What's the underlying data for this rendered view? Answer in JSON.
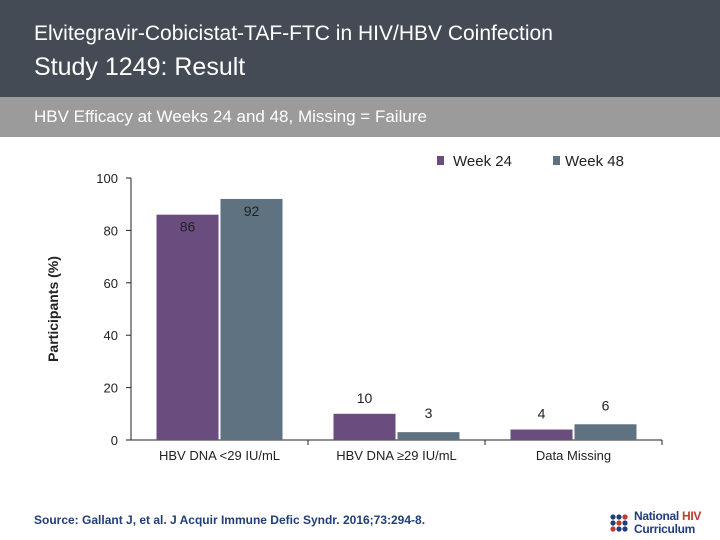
{
  "header": {
    "line1": "Elvitegravir-Cobicistat-TAF-FTC in HIV/HBV Coinfection",
    "line2": "Study 1249: Result",
    "bg_color": "#444b55"
  },
  "subheader": {
    "text": "HBV Efficacy at Weeks 24 and 48, Missing = Failure",
    "bg_color": "#9b9b9b"
  },
  "chart_data": {
    "type": "bar",
    "ylabel": "Participants (%)",
    "ylim": [
      0,
      100
    ],
    "yticks": [
      0,
      20,
      40,
      60,
      80,
      100
    ],
    "categories": [
      "HBV DNA <29 IU/mL",
      "HBV DNA ≥29 IU/mL",
      "Data Missing"
    ],
    "series": [
      {
        "name": "Week 24",
        "values": [
          86,
          10,
          4
        ],
        "color": "#6b4c7e"
      },
      {
        "name": "Week 48",
        "values": [
          92,
          3,
          6
        ],
        "color": "#5f7282"
      }
    ],
    "legend_position": "top-right",
    "grid": false
  },
  "footer": {
    "source": "Source: Gallant J, et al. J Acquir Immune Defic Syndr. 2016;73:294-8.",
    "logo_line1": "National",
    "logo_hiv": "HIV",
    "logo_line2": "Curriculum"
  }
}
